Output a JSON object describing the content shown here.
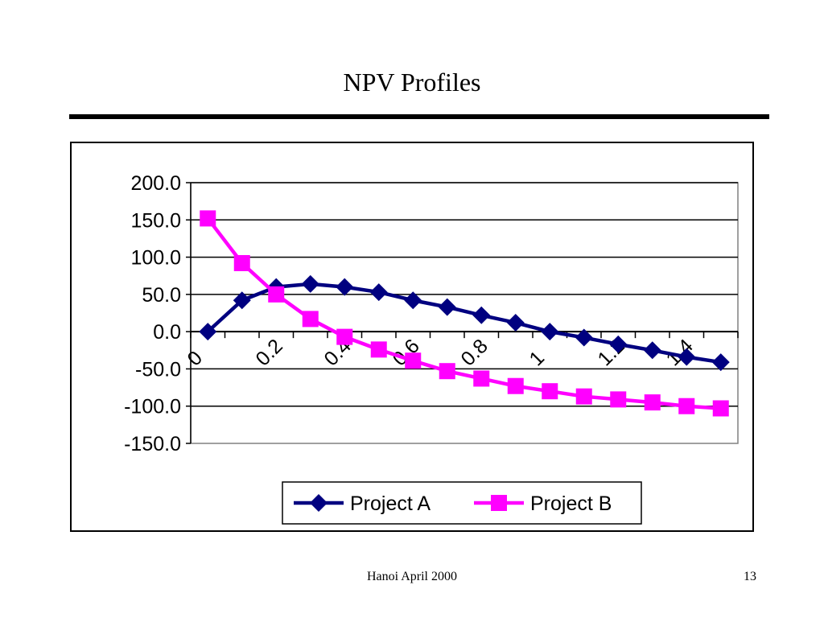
{
  "slide": {
    "title": "NPV Profiles",
    "footer": "Hanoi April 2000",
    "page_number": "13"
  },
  "chart_data": {
    "type": "line",
    "title": "",
    "xlabel": "",
    "ylabel": "",
    "ylim": [
      -150,
      200
    ],
    "y_ticks": [
      200,
      150,
      100,
      50,
      0,
      -50,
      -100,
      -150
    ],
    "y_tick_labels": [
      "200.0",
      "150.0",
      "100.0",
      "50.0",
      "0.0",
      "-50.0",
      "-100.0",
      "-150.0"
    ],
    "x": [
      0,
      0.1,
      0.2,
      0.3,
      0.4,
      0.5,
      0.6,
      0.7,
      0.8,
      0.9,
      1.0,
      1.1,
      1.2,
      1.3,
      1.4,
      1.5
    ],
    "x_tick_labels": [
      "0",
      "0.2",
      "0.4",
      "0.6",
      "0.8",
      "1",
      "1.2",
      "1.4"
    ],
    "grid": true,
    "legend_position": "bottom",
    "series": [
      {
        "name": "Project A",
        "color": "#000080",
        "marker": "diamond",
        "values": [
          0,
          42,
          60,
          64,
          60,
          53,
          42,
          33,
          22,
          12,
          0,
          -8,
          -17,
          -25,
          -34,
          -41
        ]
      },
      {
        "name": "Project B",
        "color": "#ff00ff",
        "marker": "square",
        "values": [
          152,
          92,
          50,
          17,
          -7,
          -24,
          -39,
          -53,
          -63,
          -73,
          -80,
          -87,
          -91,
          -95,
          -100,
          -103
        ]
      }
    ]
  }
}
